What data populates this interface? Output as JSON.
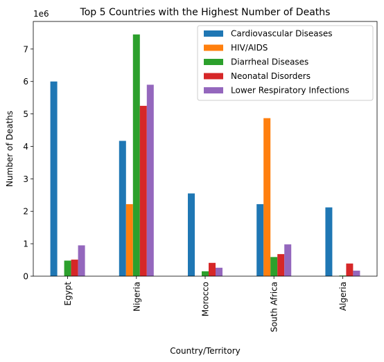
{
  "chart_data": {
    "type": "bar",
    "title": "Top 5 Countries with the Highest Number of Deaths",
    "xlabel": "Country/Territory",
    "ylabel": "Number of Deaths",
    "y_multiplier_label": "1e6",
    "categories": [
      "Egypt",
      "Nigeria",
      "Morocco",
      "South Africa",
      "Algeria"
    ],
    "ylim": [
      0,
      7.85
    ],
    "y_unit_scale": 1000000,
    "yticks": [
      0,
      1,
      2,
      3,
      4,
      5,
      6,
      7
    ],
    "ytick_labels": [
      "0",
      "1",
      "2",
      "3",
      "4",
      "5",
      "6",
      "7"
    ],
    "grid": false,
    "legend_position": "top-right",
    "series": [
      {
        "name": "Cardiovascular Diseases",
        "color": "#1f77b4",
        "values": [
          6.0,
          4.17,
          2.55,
          2.22,
          2.12
        ]
      },
      {
        "name": "HIV/AIDS",
        "color": "#ff7f0e",
        "values": [
          0.0,
          2.22,
          0.0,
          4.87,
          0.0
        ]
      },
      {
        "name": "Diarrheal Diseases",
        "color": "#2ca02c",
        "values": [
          0.48,
          7.45,
          0.15,
          0.59,
          0.02
        ]
      },
      {
        "name": "Neonatal Disorders",
        "color": "#d62728",
        "values": [
          0.51,
          5.25,
          0.41,
          0.68,
          0.39
        ]
      },
      {
        "name": "Lower Respiratory Infections",
        "color": "#9467bd",
        "values": [
          0.95,
          5.9,
          0.26,
          0.98,
          0.17
        ]
      }
    ]
  }
}
